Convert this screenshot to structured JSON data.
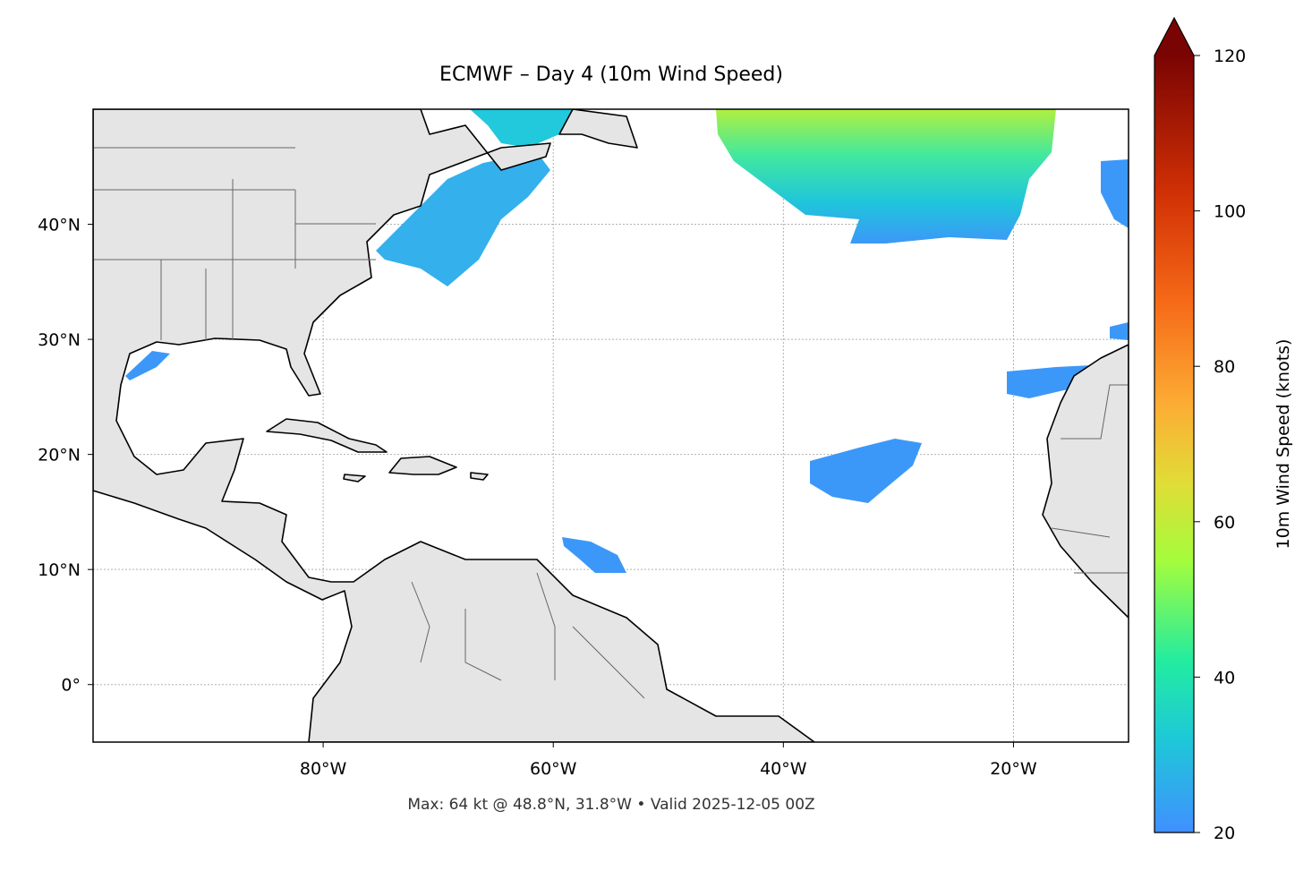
{
  "map": {
    "title": "ECMWF – Day 4 (10m Wind Speed)",
    "xlim": [
      -100,
      -10
    ],
    "ylim": [
      -5,
      50
    ],
    "xticks": [
      {
        "value": -80,
        "label": "80°W"
      },
      {
        "value": -60,
        "label": "60°W"
      },
      {
        "value": -40,
        "label": "40°W"
      },
      {
        "value": -20,
        "label": "20°W"
      }
    ],
    "yticks": [
      {
        "value": 0,
        "label": "0°"
      },
      {
        "value": 10,
        "label": "10°N"
      },
      {
        "value": 20,
        "label": "20°N"
      },
      {
        "value": 30,
        "label": "30°N"
      },
      {
        "value": 40,
        "label": "40°N"
      }
    ],
    "footer": "Max: 64 kt @ 48.8°N, 31.8°W • Valid 2025-12-05 00Z"
  },
  "colorbar": {
    "label": "10m Wind Speed (knots)",
    "lim": [
      20,
      120
    ],
    "ticks": [
      20,
      40,
      60,
      80,
      100,
      120
    ]
  }
}
